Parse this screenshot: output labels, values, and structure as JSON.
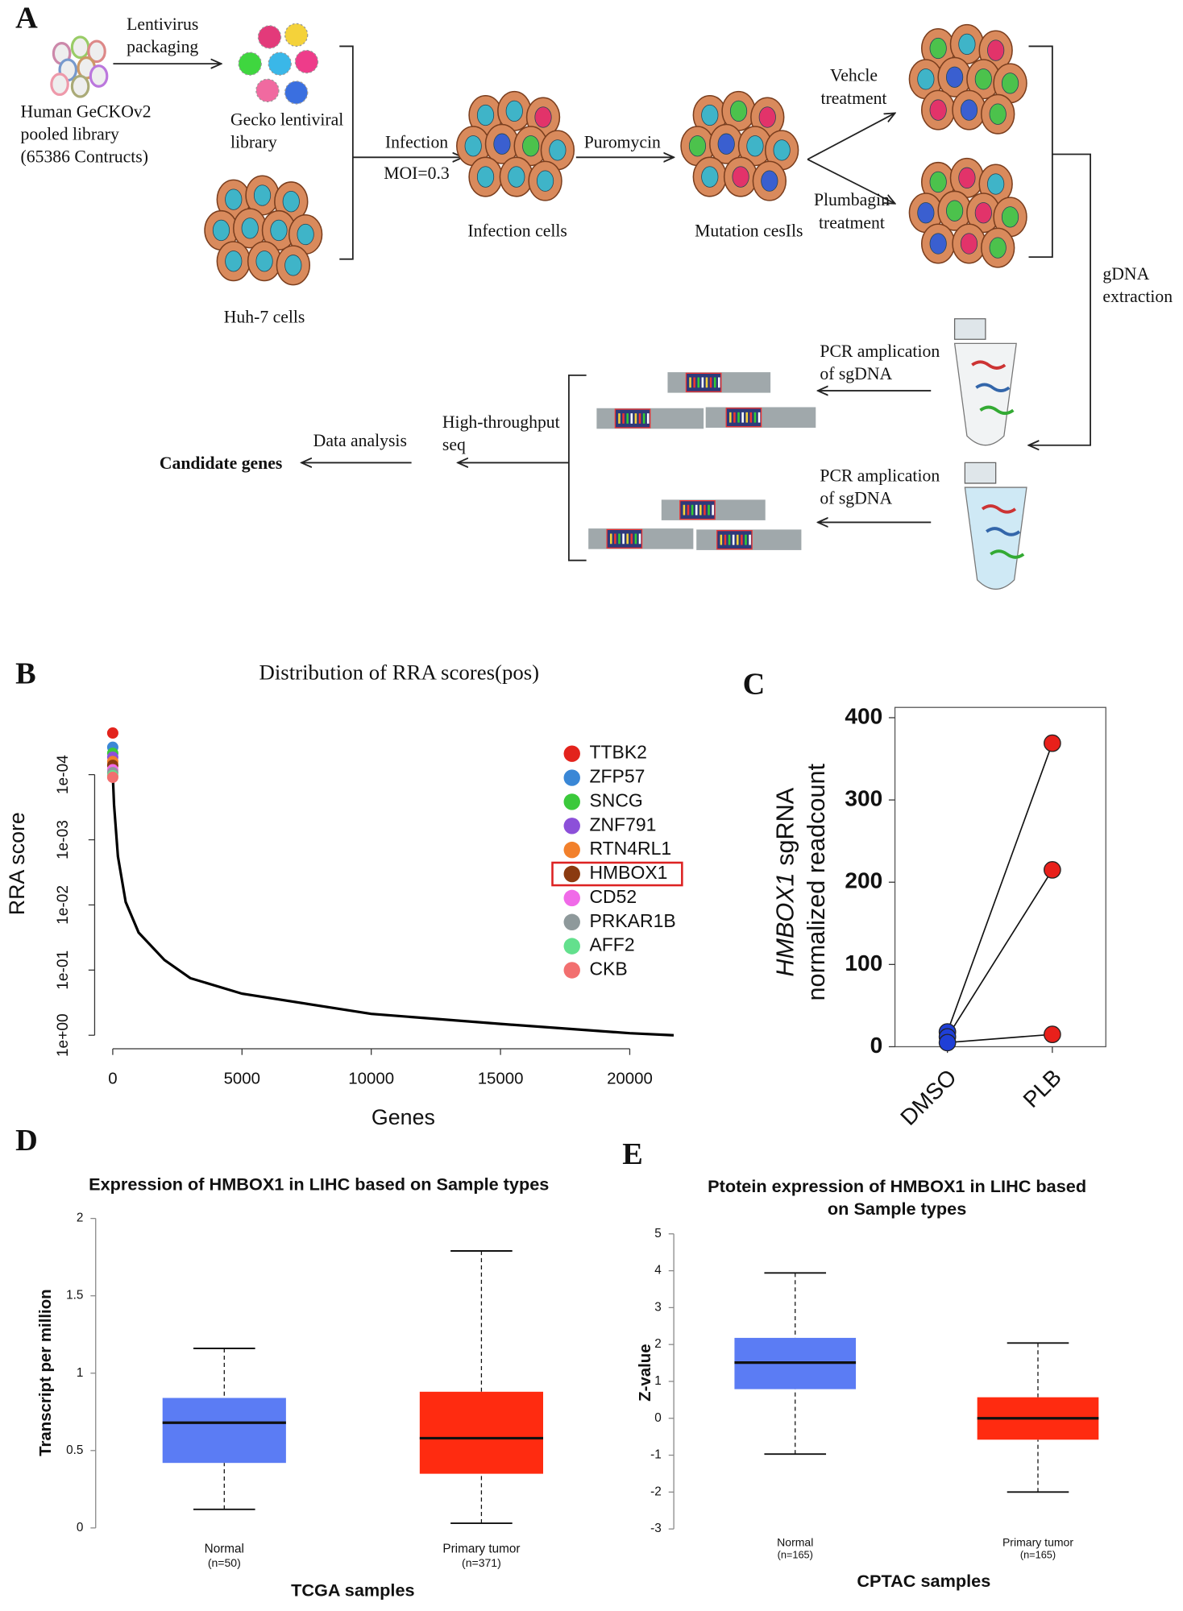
{
  "diagram": {
    "panel": "A",
    "labels": [
      [
        "Lentivirus",
        "packaging"
      ],
      [
        "Human GeCKOv2",
        "pooled library",
        "(65386 Contructs)"
      ],
      [
        "Gecko lentiviral",
        "library"
      ],
      [
        "Huh-7 cells"
      ],
      [
        "Infection"
      ],
      [
        "MOI=0.3"
      ],
      [
        "Infection cells"
      ],
      [
        "Puromycin"
      ],
      [
        "Mutation cesIls"
      ],
      [
        "Vehcle",
        "treatment"
      ],
      [
        "Plumbagin",
        "treatment"
      ],
      [
        "gDNA",
        "extraction"
      ],
      [
        "PCR amplication",
        "of sgDNA"
      ],
      [
        "PCR amplication",
        "of sgDNA"
      ],
      [
        "High-throughput",
        "seq"
      ],
      [
        "Data analysis"
      ],
      [
        "Candidate genes"
      ]
    ]
  },
  "chart_data": [
    {
      "type": "line",
      "panel": "B",
      "title": "Distribution of RRA scores(pos)",
      "x_label": "Genes",
      "y_label": "RRA score",
      "log_y": true,
      "x": [
        1,
        50,
        200,
        500,
        1000,
        2000,
        3000,
        5000,
        10000,
        15000,
        20000,
        21700
      ],
      "values": [
        0.0001,
        0.00029,
        0.0018,
        0.009,
        0.0265,
        0.07,
        0.133,
        0.23,
        0.47,
        0.67,
        0.93,
        1
      ],
      "color": "#000000",
      "xlim": [
        -700,
        22500
      ],
      "xticks": [
        0,
        5000,
        10000,
        15000,
        20000
      ],
      "ylim": [
        1.5,
        1e-05
      ],
      "yticks": [
        {
          "value": 1,
          "label": "1e+00"
        },
        {
          "value": 0.1,
          "label": "1e-01"
        },
        {
          "value": 0.01,
          "label": "1e-02"
        },
        {
          "value": 0.001,
          "label": "1e-03"
        },
        {
          "value": 0.0001,
          "label": "1e-04"
        }
      ],
      "highlight_index": 5,
      "series": [
        {
          "name": "TTBK2",
          "color": "#e3231c",
          "x": [
            0
          ],
          "values": [
            2.3e-05
          ]
        },
        {
          "name": "ZFP57",
          "color": "#3a87d6",
          "x": [
            0
          ],
          "values": [
            3.8e-05
          ]
        },
        {
          "name": "SNCG",
          "color": "#3bc93b",
          "x": [
            0
          ],
          "values": [
            4.7e-05
          ]
        },
        {
          "name": "ZNF791",
          "color": "#8c50d9",
          "x": [
            0
          ],
          "values": [
            5.4e-05
          ]
        },
        {
          "name": "RTN4RL1",
          "color": "#f2802b",
          "x": [
            0
          ],
          "values": [
            6.3e-05
          ]
        },
        {
          "name": "HMBOX1",
          "color": "#8b3a10",
          "x": [
            0
          ],
          "values": [
            7.2e-05
          ]
        },
        {
          "name": "CD52",
          "color": "#f06ae8",
          "x": [
            0
          ],
          "values": [
            8.4e-05
          ]
        },
        {
          "name": "PRKAR1B",
          "color": "#8e999b",
          "x": [
            0
          ],
          "values": [
            9.3e-05
          ]
        },
        {
          "name": "AFF2",
          "color": "#63e08d",
          "x": [
            0
          ],
          "values": [
            0.000104
          ]
        },
        {
          "name": "CKB",
          "color": "#f26f6f",
          "x": [
            0
          ],
          "values": [
            0.00011
          ]
        }
      ]
    },
    {
      "type": "dot",
      "panel": "C",
      "y_label": [
        {
          "italic": "HMBOX1",
          "text": " sgRNA"
        },
        "normalized readcount"
      ],
      "categories": [
        "DMSO",
        "PLB"
      ],
      "colors": [
        "#1f3fd6",
        "#e8201b"
      ],
      "ylim": [
        0,
        400
      ],
      "yticks": [
        0,
        100,
        200,
        300,
        400
      ],
      "series": [
        {
          "values": [
            18,
            369
          ]
        },
        {
          "values": [
            12,
            215
          ]
        },
        {
          "values": [
            5,
            15
          ]
        }
      ]
    },
    {
      "type": "box",
      "panel": "D",
      "title": [
        "Expression of HMBOX1 in LIHC based on Sample types"
      ],
      "x_label": "TCGA samples",
      "y_label": "Transcript per million",
      "categories": [
        "Normal",
        "Primary tumor"
      ],
      "sublabels": [
        "(n=50)",
        "(n=371)"
      ],
      "colors": [
        "#5b7cf4",
        "#ff2b10"
      ],
      "ylim": [
        0,
        2
      ],
      "yticks": [
        0,
        0.5,
        1,
        1.5,
        2
      ],
      "boxes": [
        {
          "min": 0.12,
          "q1": 0.42,
          "median": 0.68,
          "q3": 0.84,
          "max": 1.16
        },
        {
          "min": 0.03,
          "q1": 0.35,
          "median": 0.58,
          "q3": 0.88,
          "max": 1.79
        }
      ]
    },
    {
      "type": "box",
      "panel": "E",
      "title": [
        "Ptotein expression of  HMBOX1 in LIHC based",
        "on Sample types"
      ],
      "x_label": "CPTAC samples",
      "y_label": "Z-value",
      "categories": [
        "Normal",
        "Primary tumor"
      ],
      "sublabels": [
        "(n=165)",
        "(n=165)"
      ],
      "colors": [
        "#5b7cf4",
        "#ff2b10"
      ],
      "ylim": [
        -3,
        5
      ],
      "yticks": [
        -3,
        -2,
        -1,
        0,
        1,
        2,
        3,
        4,
        5
      ],
      "boxes": [
        {
          "min": -0.97,
          "q1": 0.79,
          "median": 1.51,
          "q3": 2.18,
          "max": 3.94
        },
        {
          "min": -2,
          "q1": -0.58,
          "median": 0,
          "q3": 0.57,
          "max": 2.04
        }
      ]
    }
  ]
}
